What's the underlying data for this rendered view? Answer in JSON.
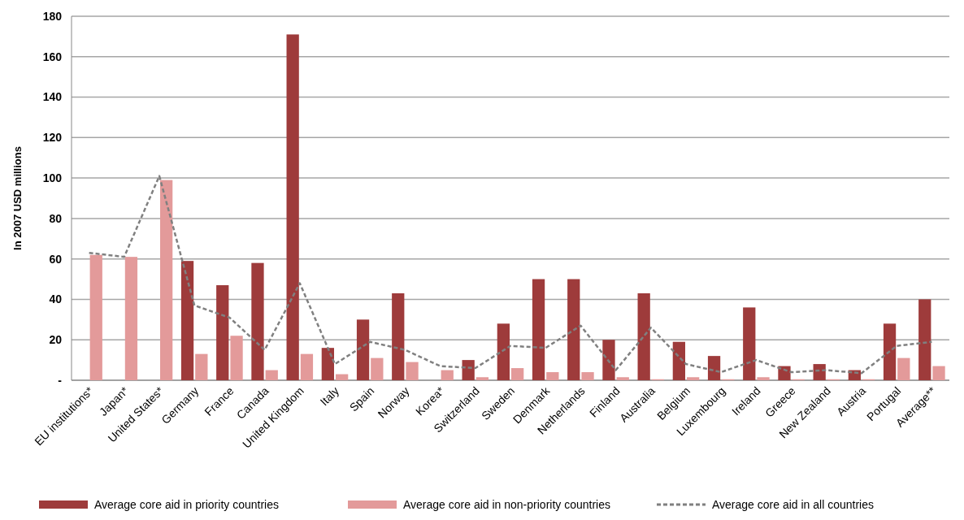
{
  "chart_data": {
    "type": "bar",
    "ylabel": "In 2007 USD millions",
    "categories": [
      "EU institutions*",
      "Japan*",
      "United States*",
      "Germany",
      "France",
      "Canada",
      "United Kingdom",
      "Italy",
      "Spain",
      "Norway",
      "Korea*",
      "Switzerland",
      "Sweden",
      "Denmark",
      "Netherlands",
      "Finland",
      "Australia",
      "Belgium",
      "Luxembourg",
      "Ireland",
      "Greece",
      "New Zealand",
      "Austria",
      "Portugal",
      "Average**"
    ],
    "series": [
      {
        "name": "Average core aid in priority countries",
        "color": "#9e3b3b",
        "values": [
          null,
          null,
          null,
          59,
          47,
          58,
          171,
          16,
          30,
          43,
          null,
          10,
          28,
          50,
          50,
          20,
          43,
          19,
          12,
          36,
          7,
          8,
          5,
          28,
          40
        ]
      },
      {
        "name": "Average core aid in non-priority countries",
        "color": "#e39a9a",
        "values": [
          62,
          61,
          99,
          13,
          22,
          5,
          13,
          3,
          11,
          9,
          5,
          1.5,
          6,
          4,
          4,
          1.5,
          0.5,
          1.5,
          0.5,
          1.5,
          0.5,
          0.5,
          0.5,
          11,
          7
        ]
      },
      {
        "name": "Average core aid in all countries",
        "type": "line",
        "color": "#808080",
        "line_style": "dashed",
        "values": [
          63,
          61,
          101,
          37,
          31,
          15,
          48,
          8,
          19,
          15,
          7,
          6,
          17,
          16,
          27,
          5,
          26,
          8,
          4,
          10,
          4,
          5,
          3.5,
          17,
          19
        ]
      }
    ],
    "ylim": [
      0,
      180
    ],
    "yticks": [
      {
        "value": 0,
        "label": "-"
      },
      20,
      40,
      60,
      80,
      100,
      120,
      140,
      160,
      180
    ],
    "grid": "y",
    "legend": "bottom"
  }
}
